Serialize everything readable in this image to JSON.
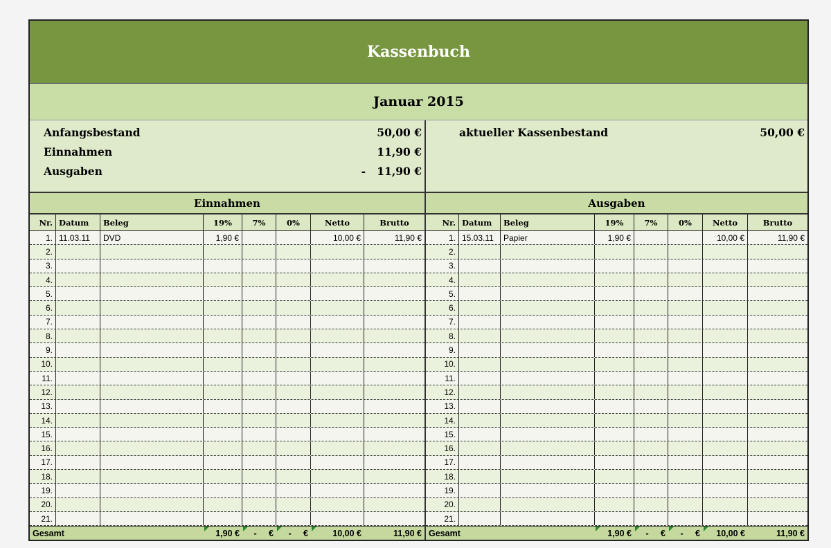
{
  "title": "Kassenbuch",
  "month": "Januar 2015",
  "summary": {
    "left": [
      {
        "label": "Anfangsbestand",
        "value": "50,00 €"
      },
      {
        "label": "Einnahmen",
        "value": "11,90 €"
      },
      {
        "label": "Ausgaben",
        "value": "-   11,90 €"
      }
    ],
    "right": [
      {
        "label": "aktueller Kassenbestand",
        "value": "50,00 €"
      }
    ]
  },
  "columns": [
    "Nr.",
    "Datum",
    "Beleg",
    "19%",
    "7%",
    "0%",
    "Netto",
    "Brutto"
  ],
  "einnahmen": {
    "heading": "Einnahmen",
    "rows": [
      [
        "1.",
        "11.03.11",
        "DVD",
        "1,90 €",
        "",
        "",
        "10,00 €",
        "11,90 €"
      ]
    ],
    "total": {
      "label": "Gesamt",
      "v19": "1,90 €",
      "v7": "-     €",
      "v0": "-     €",
      "netto": "10,00 €",
      "brutto": "11,90 €"
    }
  },
  "ausgaben": {
    "heading": "Ausgaben",
    "rows": [
      [
        "1.",
        "15.03.11",
        "Papier",
        "1,90 €",
        "",
        "",
        "10,00 €",
        "11,90 €"
      ]
    ],
    "total": {
      "label": "Gesamt",
      "v19": "1,90 €",
      "v7": "-     €",
      "v0": "-     €",
      "netto": "10,00 €",
      "brutto": "11,90 €"
    }
  },
  "row_numbers": [
    "1.",
    "2.",
    "3.",
    "4.",
    "5.",
    "6.",
    "7.",
    "8.",
    "9.",
    "10.",
    "11.",
    "12.",
    "13.",
    "14.",
    "15.",
    "16.",
    "17.",
    "18.",
    "19.",
    "20.",
    "21."
  ]
}
